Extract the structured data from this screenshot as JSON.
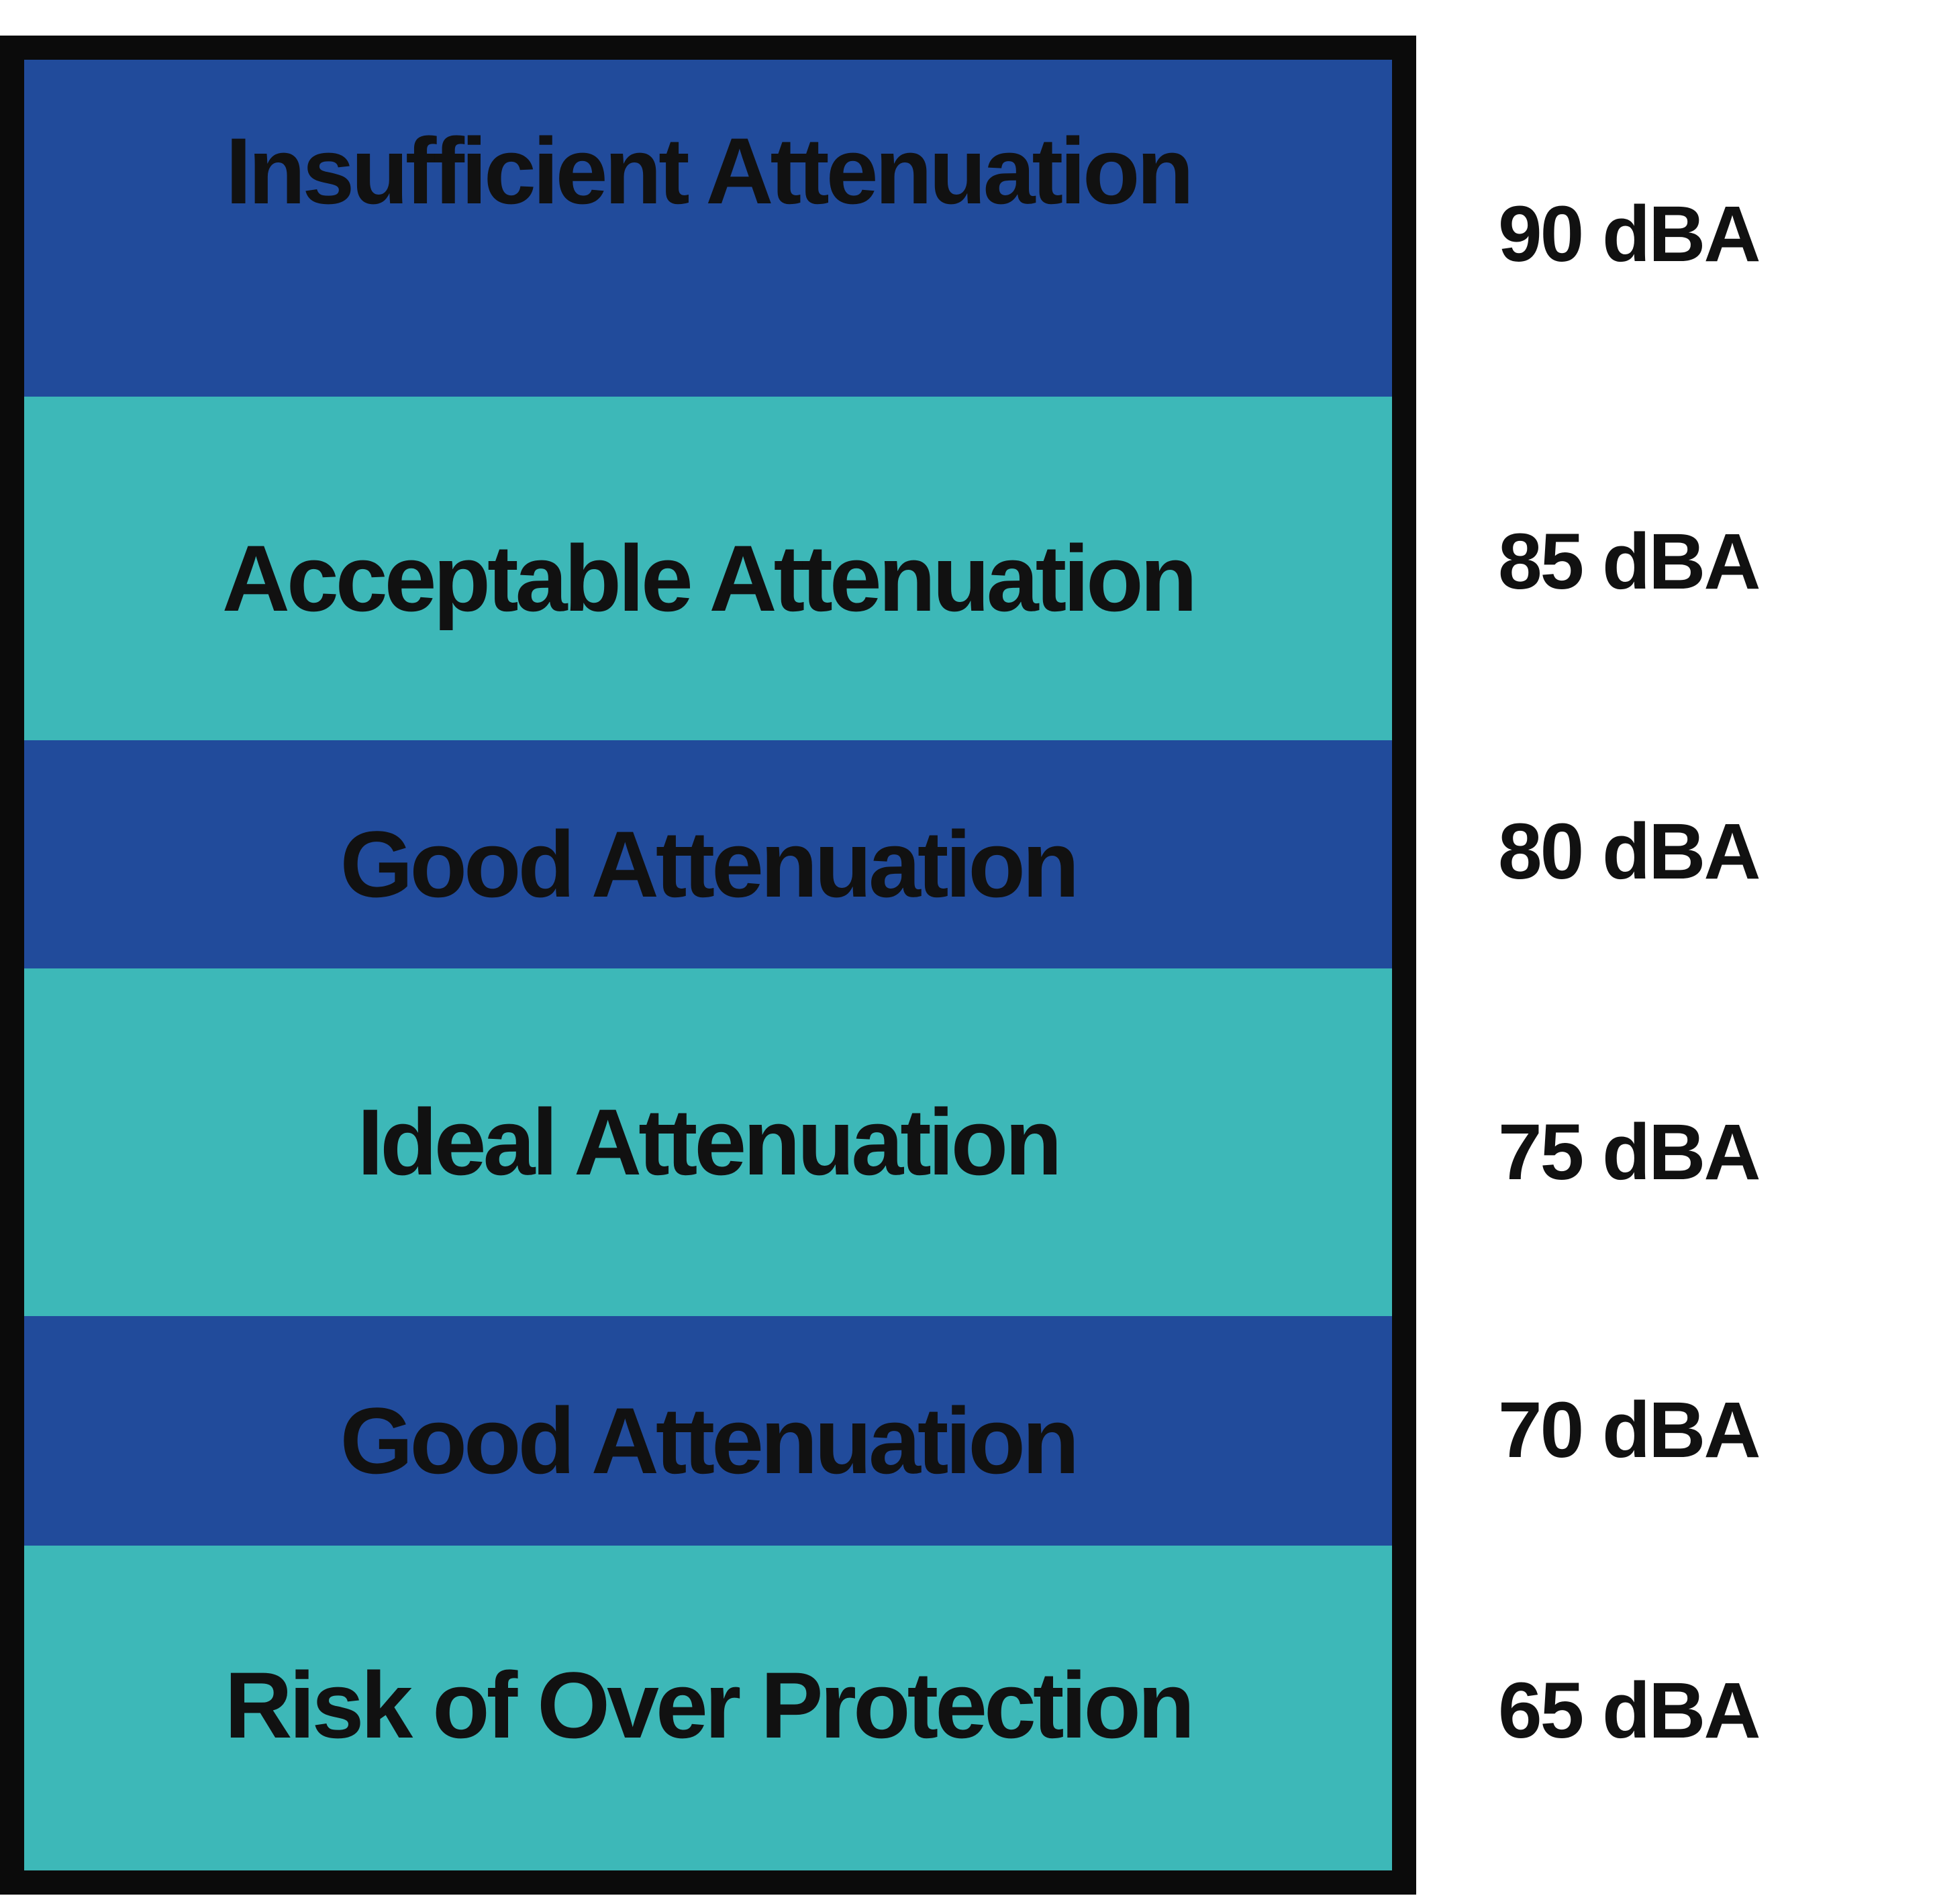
{
  "bands": [
    {
      "label": "Insufficient Attenuation",
      "color": "#214b9b"
    },
    {
      "label": "Acceptable Attenuation",
      "color": "#3db8b8"
    },
    {
      "label": "Good Attenuation",
      "color": "#214b9b"
    },
    {
      "label": "Ideal Attenuation",
      "color": "#3db8b8"
    },
    {
      "label": "Good Attenuation",
      "color": "#214b9b"
    },
    {
      "label": "Risk of Over Protection",
      "color": "#3db8b8"
    }
  ],
  "levels": [
    "90 dBA",
    "85 dBA",
    "80 dBA",
    "75 dBA",
    "70 dBA",
    "65 dBA"
  ]
}
